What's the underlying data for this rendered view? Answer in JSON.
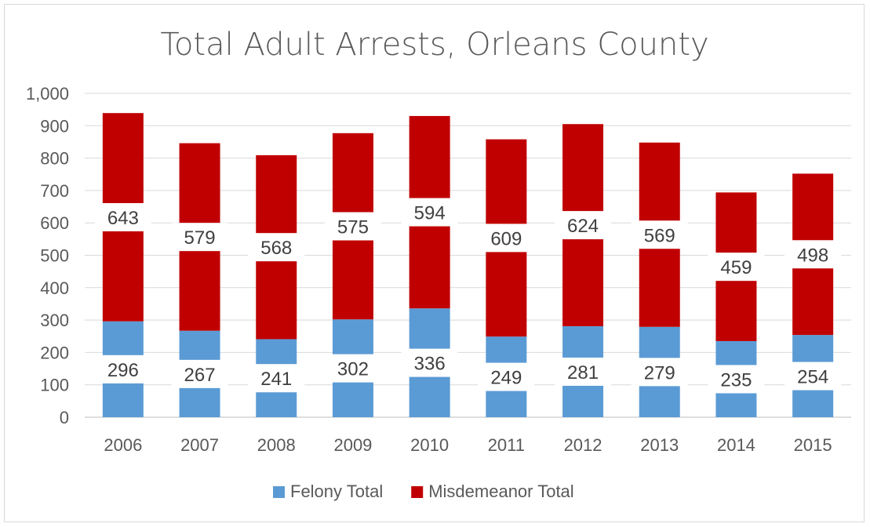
{
  "chart_data": {
    "type": "bar",
    "stacked": true,
    "title": "Total Adult Arrests, Orleans County",
    "xlabel": "",
    "ylabel": "",
    "ylim": [
      0,
      1000
    ],
    "yticks": [
      0,
      100,
      200,
      300,
      400,
      500,
      600,
      700,
      800,
      900,
      1000
    ],
    "ytick_labels": [
      "0",
      "100",
      "200",
      "300",
      "400",
      "500",
      "600",
      "700",
      "800",
      "900",
      "1,000"
    ],
    "categories": [
      "2006",
      "2007",
      "2008",
      "2009",
      "2010",
      "2011",
      "2012",
      "2013",
      "2014",
      "2015"
    ],
    "series": [
      {
        "name": "Felony Total",
        "color": "#5b9bd5",
        "values": [
          296,
          267,
          241,
          302,
          336,
          249,
          281,
          279,
          235,
          254
        ]
      },
      {
        "name": "Misdemeanor Total",
        "color": "#c00000",
        "values": [
          643,
          579,
          568,
          575,
          594,
          609,
          624,
          569,
          459,
          498
        ]
      }
    ],
    "grid": true,
    "legend_position": "bottom"
  }
}
